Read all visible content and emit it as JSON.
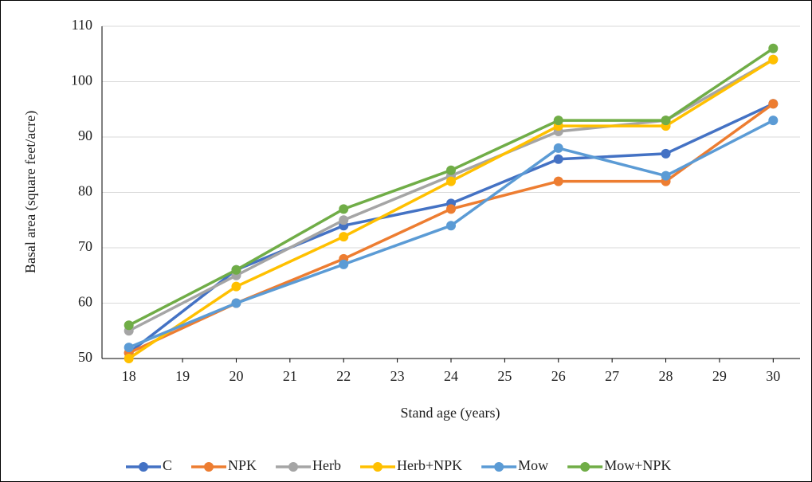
{
  "chart_data": {
    "type": "line",
    "x_label": "Stand age (years)",
    "y_label": "Basal area (square feet/acre)",
    "x": [
      18,
      20,
      22,
      24,
      26,
      28,
      30
    ],
    "series": [
      {
        "name": "C",
        "color": "#4472c4",
        "values": [
          51,
          66,
          74,
          78,
          86,
          87,
          96
        ]
      },
      {
        "name": "NPK",
        "color": "#ed7d31",
        "values": [
          51,
          60,
          68,
          77,
          82,
          82,
          96
        ]
      },
      {
        "name": "Herb",
        "color": "#a5a5a5",
        "values": [
          55,
          65,
          75,
          83,
          91,
          93,
          104
        ]
      },
      {
        "name": "Herb+NPK",
        "color": "#ffc000",
        "values": [
          50,
          63,
          72,
          82,
          92,
          92,
          104
        ]
      },
      {
        "name": "Mow",
        "color": "#5b9bd5",
        "values": [
          52,
          60,
          67,
          74,
          88,
          83,
          93
        ]
      },
      {
        "name": "Mow+NPK",
        "color": "#70ad47",
        "values": [
          56,
          66,
          77,
          84,
          93,
          93,
          106
        ]
      }
    ],
    "xlim": [
      17.5,
      30.5
    ],
    "xticks": [
      18,
      19,
      20,
      21,
      22,
      23,
      24,
      25,
      26,
      27,
      28,
      29,
      30
    ],
    "ylim": [
      50,
      110
    ],
    "yticks": [
      50,
      60,
      70,
      80,
      90,
      100,
      110
    ],
    "grid": true,
    "legend": "bottom"
  }
}
